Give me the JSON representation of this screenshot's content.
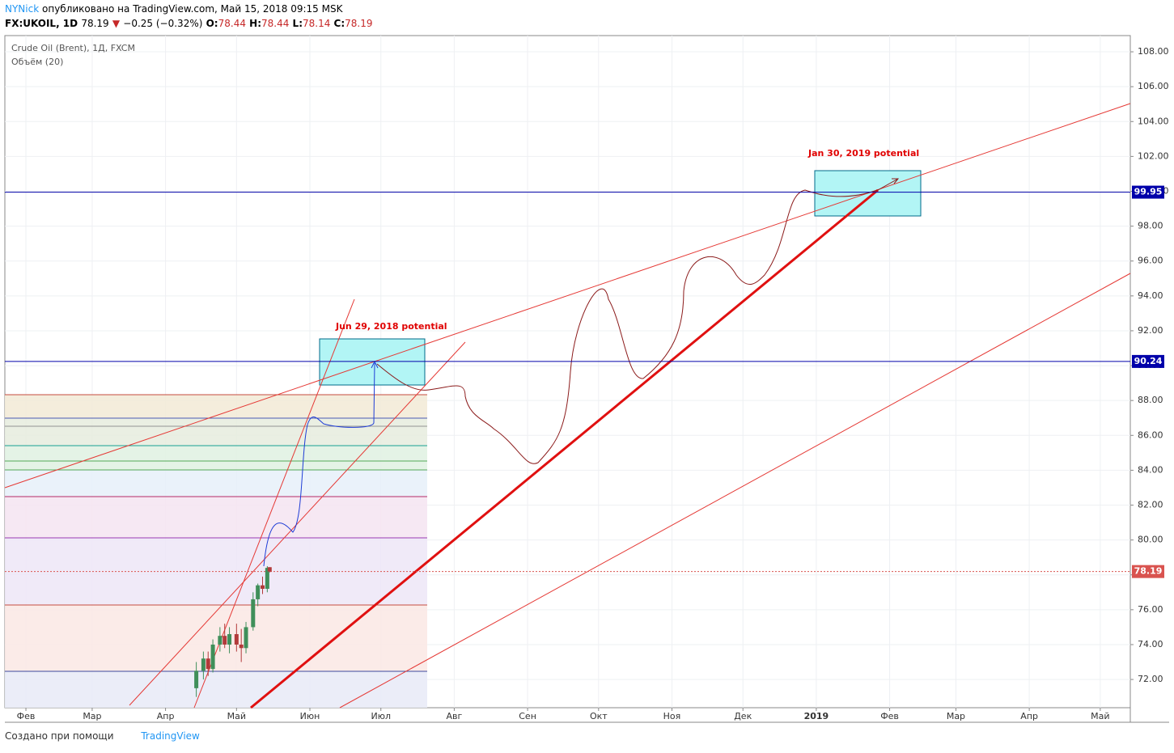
{
  "header": {
    "author": "NYNick",
    "published": "опубликовано на TradingView.com, Май 15, 2018 09:15 MSK",
    "symbol": "FX:UKOIL, 1D",
    "price": "78.19",
    "change": "−0.25 (−0.32%)",
    "o_label": "O:",
    "o": "78.44",
    "h_label": "H:",
    "h": "78.44",
    "l_label": "L:",
    "l": "78.14",
    "c_label": "C:",
    "c": "78.19"
  },
  "chart_data": {
    "type": "candlestick",
    "title": "Crude Oil (Brent), 1Д, FXCM",
    "subtitle": "Объём (20)",
    "up_color": "#3f8f5a",
    "down_color": "#b23a3a",
    "x": [
      103,
      106,
      108,
      110,
      113,
      115,
      117,
      120,
      122,
      124,
      127,
      129,
      131,
      133,
      134
    ],
    "open": [
      71.5,
      72.5,
      73.2,
      72.6,
      74.0,
      74.5,
      74.0,
      74.6,
      74.0,
      73.8,
      75.0,
      76.6,
      77.4,
      77.2,
      78.44
    ],
    "high": [
      73.0,
      73.6,
      73.6,
      74.3,
      75.0,
      75.2,
      75.0,
      75.2,
      74.9,
      75.3,
      77.0,
      77.5,
      77.9,
      78.5,
      78.44
    ],
    "low": [
      71.0,
      72.0,
      72.2,
      72.4,
      73.6,
      73.8,
      73.5,
      73.6,
      73.0,
      73.5,
      74.8,
      76.2,
      76.9,
      77.0,
      78.14
    ],
    "close": [
      72.5,
      73.2,
      72.6,
      74.0,
      74.5,
      74.0,
      74.6,
      74.0,
      73.8,
      75.0,
      76.6,
      77.4,
      77.2,
      78.4,
      78.19
    ],
    "levels": [
      {
        "value": 99.95,
        "color": "#0000aa"
      },
      {
        "value": 90.24,
        "color": "#0000aa"
      },
      {
        "value": 78.19,
        "color": "#d9534f"
      }
    ],
    "annotations": [
      "Jun 29, 2018 potential",
      "Jan 30, 2019 potential"
    ],
    "xlim": [
      22.1,
      497.7
    ],
    "xticks": [
      {
        "value": 31,
        "label": "Фев"
      },
      {
        "value": 59,
        "label": "Мар"
      },
      {
        "value": 90,
        "label": "Апр"
      },
      {
        "value": 120,
        "label": "Май"
      },
      {
        "value": 151,
        "label": "Июн"
      },
      {
        "value": 181,
        "label": "Июл"
      },
      {
        "value": 212,
        "label": "Авг"
      },
      {
        "value": 243,
        "label": "Сен"
      },
      {
        "value": 273,
        "label": "Окт"
      },
      {
        "value": 304,
        "label": "Ноя"
      },
      {
        "value": 334,
        "label": "Дек"
      },
      {
        "value": 365,
        "label": "2019"
      },
      {
        "value": 396,
        "label": "Фев"
      },
      {
        "value": 424,
        "label": "Мар"
      },
      {
        "value": 455,
        "label": "Апр"
      },
      {
        "value": 485,
        "label": "Май"
      }
    ],
    "ylim": [
      70.38,
      108.93
    ],
    "yticks": [
      {
        "value": 72,
        "label": "72.00"
      },
      {
        "value": 74,
        "label": "74.00"
      },
      {
        "value": 76,
        "label": "76.00"
      },
      {
        "value": 78,
        "label": "78.00"
      },
      {
        "value": 80,
        "label": "80.00"
      },
      {
        "value": 82,
        "label": "82.00"
      },
      {
        "value": 84,
        "label": "84.00"
      },
      {
        "value": 86,
        "label": "86.00"
      },
      {
        "value": 88,
        "label": "88.00"
      },
      {
        "value": 90,
        "label": "90.00"
      },
      {
        "value": 92,
        "label": "92.00"
      },
      {
        "value": 94,
        "label": "94.00"
      },
      {
        "value": 96,
        "label": "96.00"
      },
      {
        "value": 98,
        "label": "98.00"
      },
      {
        "value": 100,
        "label": "100.00"
      },
      {
        "value": 102,
        "label": "102.00"
      },
      {
        "value": 104,
        "label": "104.00"
      },
      {
        "value": 106,
        "label": "106.00"
      },
      {
        "value": 108,
        "label": "108.00"
      }
    ],
    "grid": true
  },
  "footer": {
    "made_with": "Создано при помощи",
    "brand": "TradingView"
  }
}
